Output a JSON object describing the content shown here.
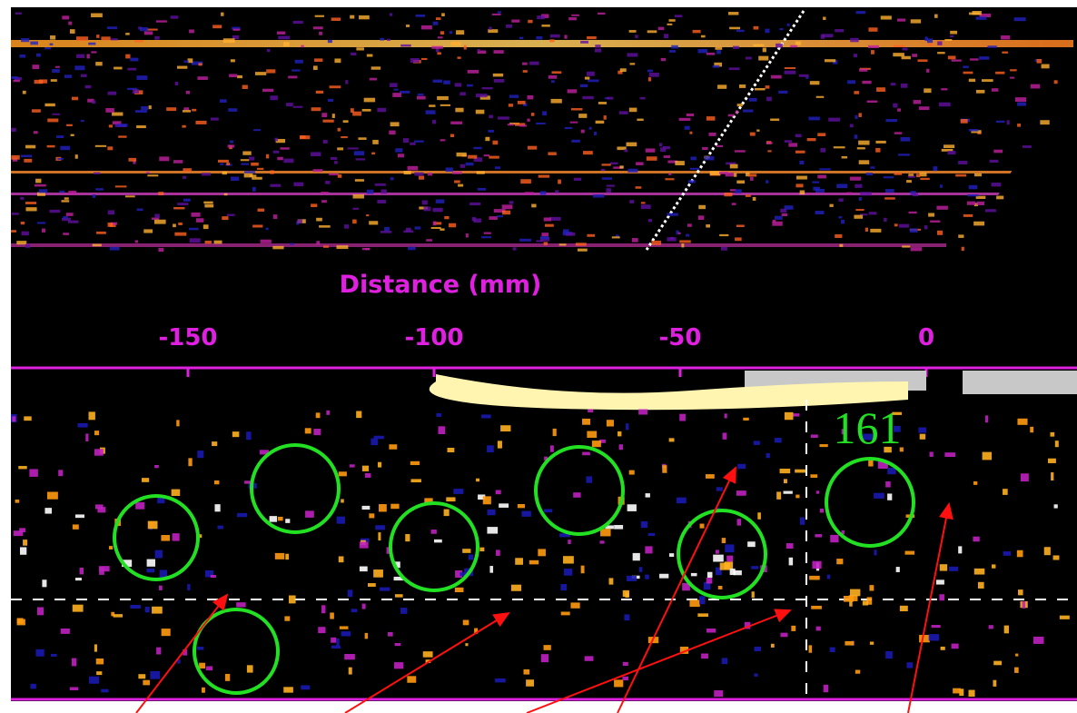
{
  "axis": {
    "label": "Distance (mm)",
    "ticks": [
      -150,
      -100,
      -50,
      0
    ]
  },
  "annotation": "161"
}
